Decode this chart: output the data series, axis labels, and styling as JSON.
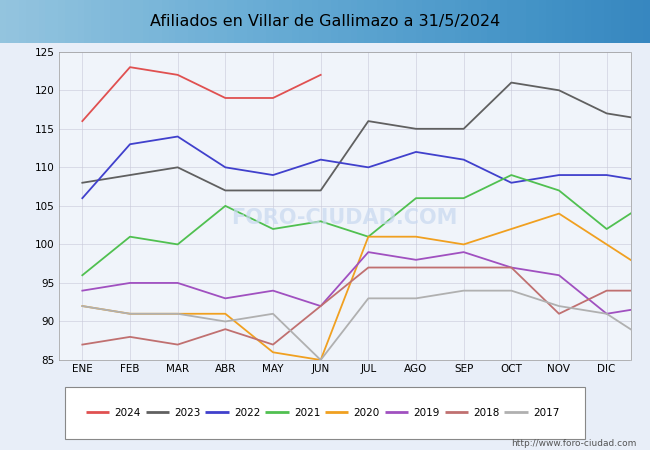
{
  "title": "Afiliados en Villar de Gallimazo a 31/5/2024",
  "background_color": "#f0f4fa",
  "plot_bg_color": "#f0f4fa",
  "ylim": [
    85,
    125
  ],
  "yticks": [
    85,
    90,
    95,
    100,
    105,
    110,
    115,
    120,
    125
  ],
  "months": [
    "ENE",
    "FEB",
    "MAR",
    "ABR",
    "MAY",
    "JUN",
    "JUL",
    "AGO",
    "SEP",
    "OCT",
    "NOV",
    "DIC"
  ],
  "url": "http://www.foro-ciudad.com",
  "series": [
    {
      "label": "2024",
      "color": "#e05050",
      "data": [
        116,
        123,
        122,
        119,
        119,
        122,
        null,
        null,
        null,
        null,
        null,
        null
      ]
    },
    {
      "label": "2023",
      "color": "#606060",
      "data": [
        108,
        109,
        110,
        107,
        107,
        107,
        116,
        115,
        115,
        121,
        120,
        117,
        116
      ]
    },
    {
      "label": "2022",
      "color": "#4040cc",
      "data": [
        106,
        113,
        114,
        110,
        109,
        111,
        110,
        112,
        111,
        108,
        109,
        109,
        108
      ]
    },
    {
      "label": "2021",
      "color": "#50c050",
      "data": [
        96,
        101,
        100,
        105,
        102,
        103,
        101,
        106,
        106,
        109,
        107,
        102,
        106
      ]
    },
    {
      "label": "2020",
      "color": "#f0a020",
      "data": [
        92,
        91,
        91,
        91,
        86,
        85,
        101,
        101,
        100,
        102,
        104,
        100,
        96
      ]
    },
    {
      "label": "2019",
      "color": "#a050c0",
      "data": [
        94,
        95,
        95,
        93,
        94,
        92,
        99,
        98,
        99,
        97,
        96,
        91,
        92
      ]
    },
    {
      "label": "2018",
      "color": "#c07070",
      "data": [
        87,
        88,
        87,
        89,
        87,
        92,
        97,
        97,
        97,
        97,
        91,
        94,
        94
      ]
    },
    {
      "label": "2017",
      "color": "#b0b0b0",
      "data": [
        92,
        91,
        91,
        90,
        91,
        85,
        93,
        93,
        94,
        94,
        92,
        91,
        87
      ]
    }
  ]
}
